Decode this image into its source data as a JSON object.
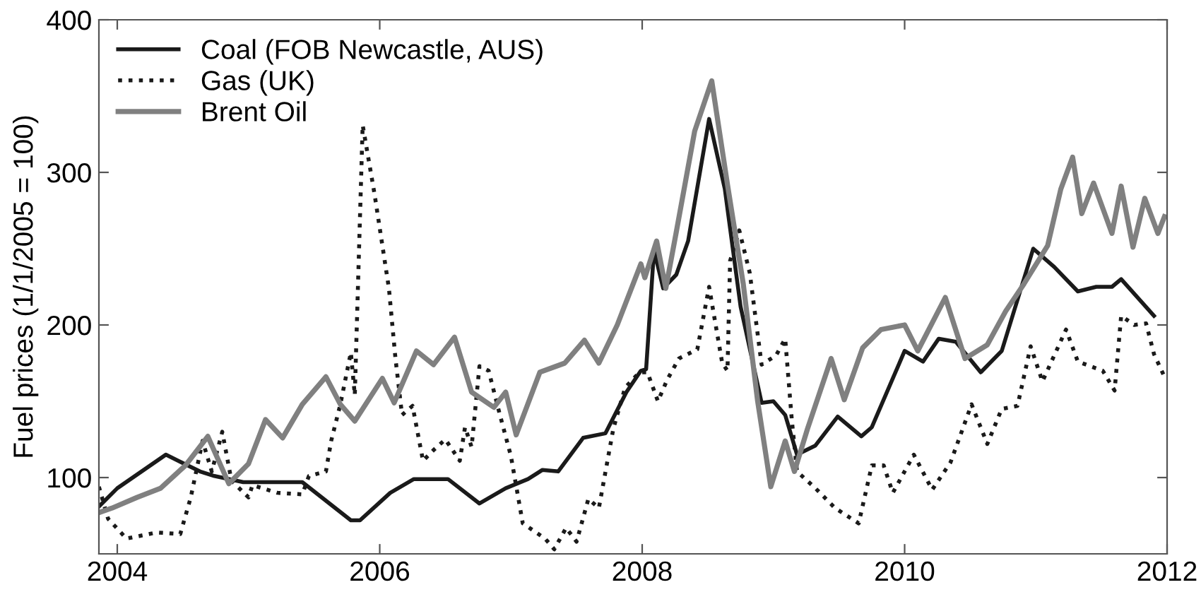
{
  "chart_data": {
    "type": "line",
    "ylabel": "Fuel prices (1/1/2005 = 100)",
    "xlim": [
      2003.86,
      2012
    ],
    "xticks": [
      2004,
      2006,
      2008,
      2010,
      2012
    ],
    "ylim": [
      50,
      400
    ],
    "yticks": [
      100,
      200,
      300,
      400
    ],
    "grid": false,
    "legend": "top left",
    "marker": "none",
    "series": [
      {
        "name": "Coal (FOB Newcastle, AUS)",
        "color": "#1a1a1a",
        "line_style": "solid",
        "x": [
          2003.86,
          2004.0,
          2004.37,
          2004.63,
          2004.74,
          2004.96,
          2005.41,
          2005.78,
          2005.85,
          2006.08,
          2006.26,
          2006.52,
          2006.76,
          2006.96,
          2007.13,
          2007.24,
          2007.36,
          2007.55,
          2007.72,
          2007.88,
          2007.99,
          2008.03,
          2008.09,
          2008.16,
          2008.26,
          2008.35,
          2008.51,
          2008.63,
          2008.75,
          2008.91,
          2009.0,
          2009.09,
          2009.18,
          2009.32,
          2009.49,
          2009.67,
          2009.75,
          2010.0,
          2010.14,
          2010.26,
          2010.39,
          2010.58,
          2010.74,
          2010.98,
          2011.14,
          2011.32,
          2011.46,
          2011.58,
          2011.65,
          2011.9
        ],
        "values": [
          81,
          93,
          115,
          104,
          101,
          97,
          97,
          72,
          72,
          90,
          99,
          99,
          83,
          93,
          99,
          105,
          104,
          126,
          129,
          156,
          170,
          171,
          249,
          224,
          233,
          255,
          335,
          289,
          212,
          149,
          150,
          141,
          115,
          121,
          140,
          127,
          133,
          183,
          176,
          191,
          189,
          169,
          183,
          250,
          238,
          222,
          225,
          225,
          230,
          206
        ]
      },
      {
        "name": "Gas (UK)",
        "color": "#1a1a1a",
        "line_style": "dotted",
        "x": [
          2003.86,
          2003.93,
          2004.07,
          2004.3,
          2004.48,
          2004.56,
          2004.65,
          2004.72,
          2004.8,
          2004.87,
          2005.0,
          2005.03,
          2005.22,
          2005.41,
          2005.46,
          2005.59,
          2005.63,
          2005.7,
          2005.78,
          2005.81,
          2005.87,
          2005.96,
          2006.07,
          2006.12,
          2006.17,
          2006.25,
          2006.33,
          2006.41,
          2006.5,
          2006.61,
          2006.65,
          2006.7,
          2006.76,
          2006.83,
          2006.91,
          2007.0,
          2007.09,
          2007.26,
          2007.33,
          2007.42,
          2007.5,
          2007.59,
          2007.67,
          2007.78,
          2007.87,
          2007.98,
          2008.04,
          2008.12,
          2008.19,
          2008.28,
          2008.42,
          2008.51,
          2008.61,
          2008.65,
          2008.67,
          2008.74,
          2008.82,
          2008.91,
          2009.02,
          2009.09,
          2009.14,
          2009.18,
          2009.32,
          2009.47,
          2009.65,
          2009.75,
          2009.84,
          2009.91,
          2010.07,
          2010.21,
          2010.35,
          2010.51,
          2010.63,
          2010.74,
          2010.86,
          2010.96,
          2011.05,
          2011.23,
          2011.32,
          2011.51,
          2011.6,
          2011.65,
          2011.75,
          2011.84,
          2011.9,
          2011.98
        ],
        "values": [
          94,
          73,
          60,
          64,
          63,
          87,
          124,
          104,
          130,
          98,
          87,
          95,
          90,
          89,
          101,
          104,
          124,
          148,
          182,
          154,
          331,
          286,
          224,
          178,
          141,
          147,
          111,
          118,
          125,
          111,
          133,
          120,
          173,
          170,
          143,
          114,
          70,
          60,
          53,
          67,
          58,
          86,
          80,
          132,
          159,
          169,
          169,
          150,
          164,
          178,
          184,
          225,
          175,
          170,
          242,
          262,
          234,
          174,
          180,
          191,
          138,
          104,
          93,
          80,
          70,
          108,
          108,
          90,
          115,
          92,
          110,
          148,
          122,
          145,
          147,
          186,
          163,
          197,
          176,
          170,
          157,
          206,
          200,
          201,
          181,
          166
        ]
      },
      {
        "name": "Brent Oil",
        "color": "#808080",
        "line_style": "solid",
        "x": [
          2003.86,
          2003.96,
          2004.15,
          2004.33,
          2004.52,
          2004.69,
          2004.85,
          2005.0,
          2005.13,
          2005.26,
          2005.41,
          2005.59,
          2005.7,
          2005.81,
          2006.02,
          2006.11,
          2006.28,
          2006.41,
          2006.57,
          2006.7,
          2006.87,
          2006.96,
          2007.04,
          2007.22,
          2007.41,
          2007.56,
          2007.67,
          2007.81,
          2007.99,
          2008.02,
          2008.11,
          2008.18,
          2008.26,
          2008.4,
          2008.53,
          2008.65,
          2008.77,
          2008.88,
          2008.98,
          2009.09,
          2009.16,
          2009.26,
          2009.44,
          2009.54,
          2009.68,
          2009.82,
          2010.0,
          2010.1,
          2010.31,
          2010.46,
          2010.63,
          2010.77,
          2010.91,
          2011.09,
          2011.19,
          2011.28,
          2011.35,
          2011.44,
          2011.58,
          2011.65,
          2011.74,
          2011.83,
          2011.93,
          2011.98
        ],
        "values": [
          77,
          80,
          87,
          93,
          108,
          127,
          96,
          109,
          138,
          126,
          148,
          166,
          148,
          137,
          165,
          149,
          183,
          174,
          192,
          156,
          146,
          156,
          128,
          169,
          175,
          190,
          175,
          200,
          240,
          231,
          255,
          224,
          261,
          327,
          360,
          292,
          227,
          150,
          94,
          124,
          104,
          132,
          178,
          151,
          185,
          197,
          200,
          183,
          218,
          178,
          187,
          209,
          227,
          252,
          289,
          310,
          273,
          293,
          260,
          291,
          251,
          283,
          260,
          271
        ]
      }
    ]
  }
}
